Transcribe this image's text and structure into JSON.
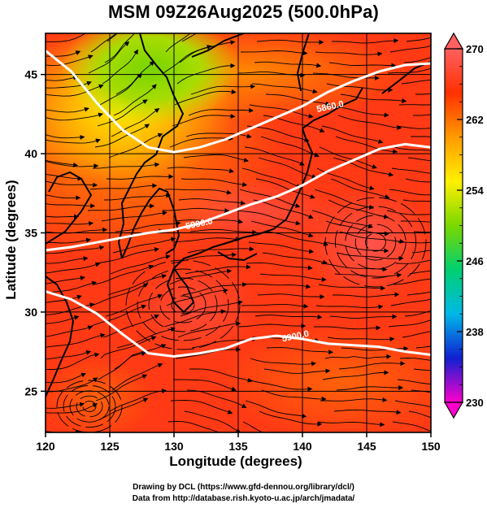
{
  "title": "MSM 09Z26Aug2025 (500.0hPa)",
  "xlabel": "Longitude (degrees)",
  "ylabel": "Latitude  (degrees)",
  "credit_line1": "Drawing by DCL (https://www.gfd-dennou.org/library/dcl/)",
  "credit_line2": "Data from http://database.rish.kyoto-u.ac.jp/arch/jmadata/",
  "chart_data": {
    "type": "heatmap",
    "title": "MSM 09Z26Aug2025 (500.0hPa)",
    "xlabel": "Longitude (degrees)",
    "ylabel": "Latitude  (degrees)",
    "xlim": [
      120,
      150
    ],
    "ylim": [
      22.4,
      47.6
    ],
    "x_ticks": [
      "120",
      "125",
      "130",
      "135",
      "140",
      "145",
      "150"
    ],
    "y_ticks": [
      "25",
      "30",
      "35",
      "40",
      "45"
    ],
    "grid": true,
    "colorbar": {
      "range": [
        230,
        270
      ],
      "ticks": [
        "230",
        "238",
        "246",
        "254",
        "262",
        "270"
      ],
      "extends": "both",
      "colors": [
        "#ff00cc",
        "#1020d0",
        "#00b8e8",
        "#00d070",
        "#7ad800",
        "#fff000",
        "#ff9a00",
        "#ff3000",
        "#ff6060"
      ]
    },
    "contours": [
      {
        "label": "5860.0",
        "label_lon": 142.2,
        "label_lat": 42.8,
        "lon": [
          120,
          122,
          124,
          126,
          128,
          130,
          132,
          134,
          136,
          138,
          140,
          142,
          144,
          146,
          148,
          150
        ],
        "lat": [
          46.5,
          45.2,
          43.2,
          41.5,
          40.4,
          40.1,
          40.4,
          40.9,
          41.6,
          42.3,
          43.0,
          43.9,
          44.6,
          45.2,
          45.6,
          45.7
        ]
      },
      {
        "label": "5900.0",
        "label_lon": 132.0,
        "label_lat": 35.4,
        "lon": [
          120,
          122,
          124,
          126,
          128,
          130,
          132,
          134,
          136,
          138,
          140,
          142,
          144,
          146,
          148,
          150
        ],
        "lat": [
          33.9,
          34.1,
          34.4,
          34.7,
          35.0,
          35.2,
          35.6,
          36.2,
          36.8,
          37.3,
          38.0,
          38.9,
          39.6,
          40.3,
          40.6,
          40.4
        ]
      },
      {
        "label": "5900.0",
        "label_lon": 139.5,
        "label_lat": 28.3,
        "lon": [
          120,
          122,
          124,
          126,
          128,
          130,
          132,
          134,
          136,
          138,
          140,
          142,
          144,
          146,
          148,
          150
        ],
        "lat": [
          31.3,
          30.8,
          29.9,
          28.6,
          27.4,
          27.2,
          27.4,
          27.7,
          28.3,
          28.5,
          28.3,
          28.0,
          27.9,
          27.8,
          27.5,
          27.3
        ]
      }
    ]
  }
}
